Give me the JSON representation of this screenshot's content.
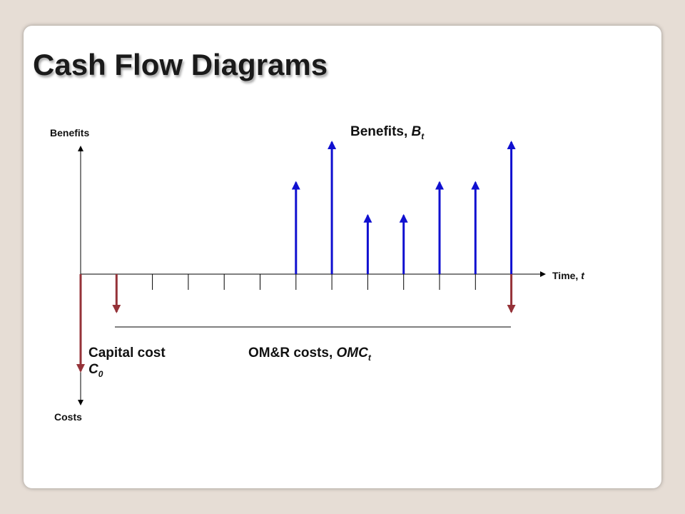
{
  "title": "Cash Flow Diagrams",
  "axes": {
    "benefits_label": "Benefits",
    "costs_label": "Costs",
    "time_label": "Time, ",
    "time_symbol": "t"
  },
  "annotations": {
    "benefits_text": "Benefits, ",
    "benefits_symbol": "B",
    "benefits_sub": "t",
    "omr_text": "OM&R costs, ",
    "omr_symbol": "OMC",
    "omr_sub": "t",
    "capital_text": "Capital cost",
    "capital_symbol": "C",
    "capital_sub": "0"
  },
  "colors": {
    "benefit": "#1010d0",
    "cost": "#953238",
    "axis": "#000000"
  },
  "cash_flow": {
    "periods": 13,
    "benefits": [
      0,
      0,
      0,
      0,
      0,
      0,
      2.5,
      3.6,
      1.6,
      1.6,
      2.5,
      2.5,
      3.6
    ],
    "costs": [
      3.6,
      1.4,
      0,
      0,
      0,
      0,
      0,
      0,
      0,
      0,
      0,
      0,
      1.4
    ]
  }
}
